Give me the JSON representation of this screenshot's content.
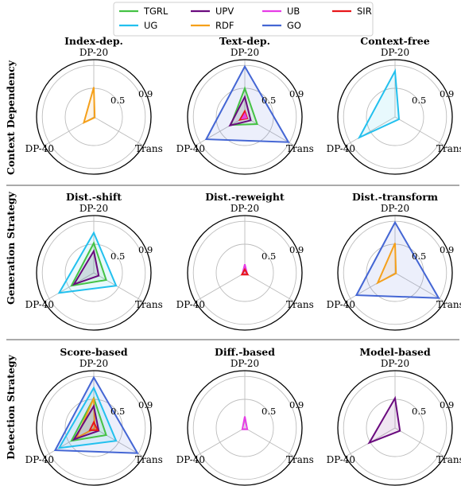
{
  "colors": {
    "TGRL": "#44c244",
    "UG": "#22c0ee",
    "UPV": "#6a0a7e",
    "RDF": "#f5a01a",
    "UB": "#e63ce6",
    "GO": "#4466d4",
    "SIR": "#e8161a"
  },
  "legend": {
    "placement": "top-center",
    "entries": [
      "TGRL",
      "UG",
      "UPV",
      "RDF",
      "UB",
      "GO",
      "SIR"
    ]
  },
  "axes": {
    "top": "DP-20",
    "left": "DP-40",
    "right": "Trans",
    "ring_labels": [
      "0.5",
      "0.9"
    ]
  },
  "row_labels": [
    "Context Dependency",
    "Generation Strategy",
    "Detection Strategy"
  ],
  "chart_data": [
    {
      "type": "radar",
      "title": "Index-dep.",
      "axes": [
        "DP-20",
        "Trans",
        "DP-40"
      ],
      "series": [
        {
          "name": "RDF",
          "values": [
            0.52,
            0.02,
            0.2
          ]
        }
      ]
    },
    {
      "type": "radar",
      "title": "Text-dep.",
      "axes": [
        "DP-20",
        "Trans",
        "DP-40"
      ],
      "series": [
        {
          "name": "GO",
          "values": [
            0.88,
            0.88,
            0.78
          ]
        },
        {
          "name": "TGRL",
          "values": [
            0.5,
            0.25,
            0.28
          ]
        },
        {
          "name": "UPV",
          "values": [
            0.35,
            0.12,
            0.3
          ]
        },
        {
          "name": "SIR",
          "values": [
            0.1,
            0.05,
            0.1
          ]
        },
        {
          "name": "UB",
          "values": [
            0.05,
            0.03,
            0.05
          ]
        }
      ]
    },
    {
      "type": "radar",
      "title": "Context-free",
      "axes": [
        "DP-20",
        "Trans",
        "DP-40"
      ],
      "series": [
        {
          "name": "UG",
          "values": [
            0.8,
            0.08,
            0.72
          ]
        }
      ]
    },
    {
      "type": "radar",
      "title": "Dist.-shift",
      "axes": [
        "DP-20",
        "Trans",
        "DP-40"
      ],
      "series": [
        {
          "name": "UG",
          "values": [
            0.7,
            0.45,
            0.7
          ]
        },
        {
          "name": "TGRL",
          "values": [
            0.52,
            0.25,
            0.45
          ]
        },
        {
          "name": "UPV",
          "values": [
            0.38,
            0.1,
            0.4
          ]
        }
      ]
    },
    {
      "type": "radar",
      "title": "Dist.-reweight",
      "axes": [
        "DP-20",
        "Trans",
        "DP-40"
      ],
      "series": [
        {
          "name": "UB",
          "values": [
            0.15,
            0.05,
            0.05
          ]
        },
        {
          "name": "SIR",
          "values": [
            0.06,
            0.06,
            0.06
          ]
        }
      ]
    },
    {
      "type": "radar",
      "title": "Dist.-transform",
      "axes": [
        "DP-20",
        "Trans",
        "DP-40"
      ],
      "series": [
        {
          "name": "GO",
          "values": [
            0.88,
            0.88,
            0.78
          ]
        },
        {
          "name": "RDF",
          "values": [
            0.52,
            0.02,
            0.35
          ]
        }
      ]
    },
    {
      "type": "radar",
      "title": "Score-based",
      "axes": [
        "DP-20",
        "Trans",
        "DP-40"
      ],
      "series": [
        {
          "name": "GO",
          "values": [
            0.88,
            0.88,
            0.78
          ]
        },
        {
          "name": "UG",
          "values": [
            0.7,
            0.45,
            0.7
          ]
        },
        {
          "name": "TGRL",
          "values": [
            0.52,
            0.25,
            0.45
          ]
        },
        {
          "name": "RDF",
          "values": [
            0.52,
            0.02,
            0.35
          ]
        },
        {
          "name": "UPV",
          "values": [
            0.38,
            0.1,
            0.4
          ]
        },
        {
          "name": "SIR",
          "values": [
            0.1,
            0.08,
            0.08
          ]
        }
      ]
    },
    {
      "type": "radar",
      "title": "Diff.-based",
      "axes": [
        "DP-20",
        "Trans",
        "DP-40"
      ],
      "series": [
        {
          "name": "UB",
          "values": [
            0.2,
            0.05,
            0.05
          ]
        }
      ]
    },
    {
      "type": "radar",
      "title": "Model-based",
      "axes": [
        "DP-20",
        "Trans",
        "DP-40"
      ],
      "series": [
        {
          "name": "UPV",
          "values": [
            0.52,
            0.1,
            0.52
          ]
        }
      ]
    }
  ]
}
